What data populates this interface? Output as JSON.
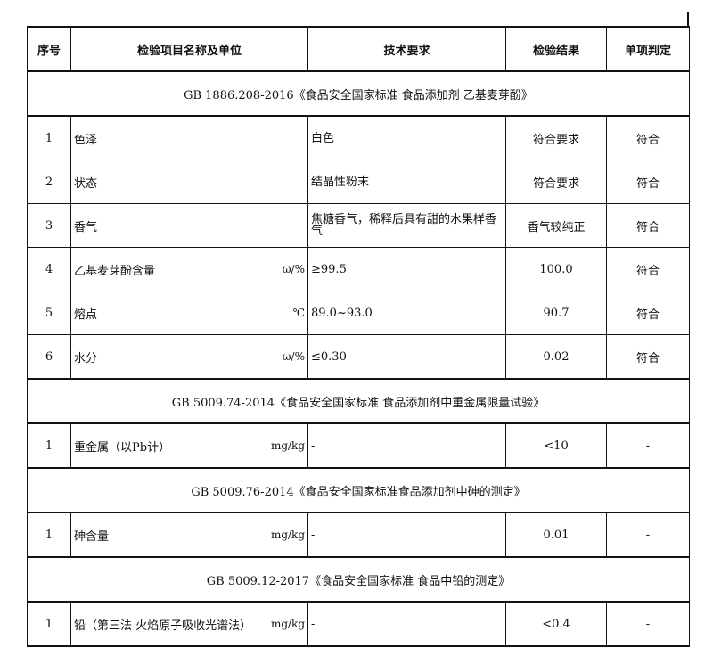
{
  "headers": [
    "序号",
    "检验项目名称及单位",
    "技术要求",
    "检验结果",
    "单项判定"
  ],
  "sections": [
    {
      "standard": "GB 1886.208-2016《食品安全国家标准 食品添加剂 乙基麦芽酚》",
      "rows": [
        {
          "no": "1",
          "item": "色泽",
          "unit": "",
          "requirement": "白色",
          "result": "符合要求",
          "judgement": "符合"
        },
        {
          "no": "2",
          "item": "状态",
          "unit": "",
          "requirement": "结晶性粉末",
          "result": "符合要求",
          "judgement": "符合"
        },
        {
          "no": "3",
          "item": "香气",
          "unit": "",
          "requirement": "焦糖香气，稀释后具有甜的水果样香气",
          "result": "香气较纯正",
          "judgement": "符合"
        },
        {
          "no": "4",
          "item": "乙基麦芽酚含量",
          "unit": "ω/%",
          "requirement": "≥99.5",
          "result": "100.0",
          "judgement": "符合"
        },
        {
          "no": "5",
          "item": "熔点",
          "unit": "℃",
          "requirement": "89.0~93.0",
          "result": "90.7",
          "judgement": "符合"
        },
        {
          "no": "6",
          "item": "水分",
          "unit": "ω/%",
          "requirement": "≤0.30",
          "result": "0.02",
          "judgement": "符合"
        }
      ]
    },
    {
      "standard": "GB 5009.74-2014《食品安全国家标准 食品添加剂中重金属限量试验》",
      "rows": [
        {
          "no": "1",
          "item": "重金属（以Pb计）",
          "unit": "mg/kg",
          "requirement": "-",
          "result": "<10",
          "judgement": "-"
        }
      ]
    },
    {
      "standard": "GB 5009.76-2014《食品安全国家标准食品添加剂中砷的测定》",
      "rows": [
        {
          "no": "1",
          "item": "砷含量",
          "unit": "mg/kg",
          "requirement": "-",
          "result": "0.01",
          "judgement": "-"
        }
      ]
    },
    {
      "standard": "GB 5009.12-2017《食品安全国家标准 食品中铅的测定》",
      "rows": [
        {
          "no": "1",
          "item": "铅（第三法 火焰原子吸收光谱法）",
          "unit": "mg/kg",
          "requirement": "-",
          "result": "<0.4",
          "judgement": "-"
        }
      ]
    }
  ]
}
